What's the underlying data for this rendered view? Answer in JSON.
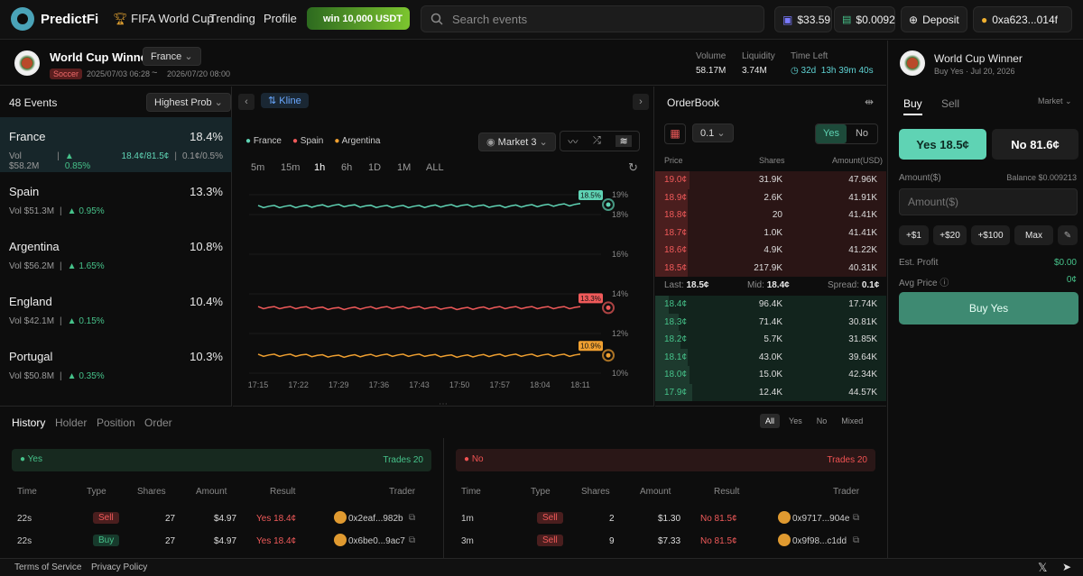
{
  "topbar": {
    "brand": "PredictFi",
    "nav": [
      "FIFA World Cup",
      "Trending",
      "Profile"
    ],
    "promo": "win 10,000 USDT",
    "search_placeholder": "Search events",
    "balance1": "$33.59",
    "balance2": "$0.0092",
    "deposit": "Deposit",
    "wallet": "0xa623...014f"
  },
  "market": {
    "title": "World Cup Winner",
    "selected": "France",
    "category": "Soccer",
    "start": "2025/07/03 06:28",
    "sep": "~",
    "end": "2026/07/20 08:00",
    "volume_label": "Volume",
    "volume": "58.17M",
    "liquidity_label": "Liquidity",
    "liquidity": "3.74M",
    "time_left_label": "Time Left",
    "time_left_days": "32d",
    "time_left_time": "13h 39m 40s"
  },
  "events": {
    "count": "48 Events",
    "sort": "Highest Prob",
    "items": [
      {
        "name": "France",
        "pct": "18.4%",
        "vol": "Vol $58.2M",
        "chg": "0.85%",
        "prices": "18.4¢/81.5¢",
        "spread": "0.1¢/0.5%"
      },
      {
        "name": "Spain",
        "pct": "13.3%",
        "vol": "Vol $51.3M",
        "chg": "0.95%"
      },
      {
        "name": "Argentina",
        "pct": "10.8%",
        "vol": "Vol $56.2M",
        "chg": "1.65%"
      },
      {
        "name": "England",
        "pct": "10.4%",
        "vol": "Vol $42.1M",
        "chg": "0.15%"
      },
      {
        "name": "Portugal",
        "pct": "10.3%",
        "vol": "Vol $50.8M",
        "chg": "0.35%"
      }
    ]
  },
  "chart": {
    "mode": "Kline",
    "market_select": "Market 3",
    "timeframes": [
      "5m",
      "15m",
      "1h",
      "6h",
      "1D",
      "1M",
      "ALL"
    ],
    "active_timeframe": "1h",
    "colors": {
      "France": "#5fd3b4",
      "Spain": "#f05a5a",
      "Argentina": "#f0a030"
    }
  },
  "chart_data": {
    "type": "line",
    "x": [
      "17:15",
      "17:22",
      "17:29",
      "17:36",
      "17:43",
      "17:50",
      "17:57",
      "18:04",
      "18:11"
    ],
    "y_ticks": [
      "19%",
      "18%",
      "16%",
      "14%",
      "12%",
      "10%"
    ],
    "ylim": [
      10,
      19
    ],
    "series": [
      {
        "name": "France",
        "values": [
          18.4,
          18.4,
          18.45,
          18.4,
          18.4,
          18.45,
          18.4,
          18.45,
          18.5
        ],
        "last_label": "18.5%"
      },
      {
        "name": "Spain",
        "values": [
          13.3,
          13.3,
          13.25,
          13.3,
          13.3,
          13.25,
          13.3,
          13.3,
          13.3
        ],
        "last_label": "13.3%"
      },
      {
        "name": "Argentina",
        "values": [
          10.9,
          10.9,
          10.85,
          10.9,
          10.9,
          10.85,
          10.9,
          10.9,
          10.9
        ],
        "last_label": "10.9%"
      }
    ]
  },
  "orderbook": {
    "title": "OrderBook",
    "tick": "0.1",
    "yes": "Yes",
    "no": "No",
    "headers": [
      "Price",
      "Shares",
      "Amount(USD)"
    ],
    "asks": [
      {
        "price": "19.0¢",
        "shares": "31.9K",
        "amount": "47.96K",
        "depth": 0.15
      },
      {
        "price": "18.9¢",
        "shares": "2.6K",
        "amount": "41.91K",
        "depth": 0.14
      },
      {
        "price": "18.8¢",
        "shares": "20",
        "amount": "41.41K",
        "depth": 0.14
      },
      {
        "price": "18.7¢",
        "shares": "1.0K",
        "amount": "41.41K",
        "depth": 0.14
      },
      {
        "price": "18.6¢",
        "shares": "4.9K",
        "amount": "41.22K",
        "depth": 0.14
      },
      {
        "price": "18.5¢",
        "shares": "217.9K",
        "amount": "40.31K",
        "depth": 0.14
      }
    ],
    "last_label": "Last:",
    "last": "18.5¢",
    "mid_label": "Mid:",
    "mid": "18.4¢",
    "spread_label": "Spread:",
    "spread": "0.1¢",
    "bids": [
      {
        "price": "18.4¢",
        "shares": "96.4K",
        "amount": "17.74K",
        "depth": 0.06
      },
      {
        "price": "18.3¢",
        "shares": "71.4K",
        "amount": "30.81K",
        "depth": 0.1
      },
      {
        "price": "18.2¢",
        "shares": "5.7K",
        "amount": "31.85K",
        "depth": 0.11
      },
      {
        "price": "18.1¢",
        "shares": "43.0K",
        "amount": "39.64K",
        "depth": 0.14
      },
      {
        "price": "18.0¢",
        "shares": "15.0K",
        "amount": "42.34K",
        "depth": 0.15
      },
      {
        "price": "17.9¢",
        "shares": "12.4K",
        "amount": "44.57K",
        "depth": 0.16
      }
    ]
  },
  "trade": {
    "title": "World Cup Winner",
    "subtitle": "Buy Yes · Jul 20, 2026",
    "buy_tab": "Buy",
    "sell_tab": "Sell",
    "order_type": "Market",
    "yes_btn": "Yes 18.5¢",
    "no_btn": "No 81.6¢",
    "amount_label": "Amount($)",
    "balance": "Balance $0.009213",
    "amount_placeholder": "Amount($)",
    "quick": [
      "+$1",
      "+$20",
      "+$100",
      "Max"
    ],
    "est_profit_label": "Est. Profit",
    "est_profit": "$0.00",
    "avg_price_label": "Avg Price",
    "avg_price": "0¢",
    "submit": "Buy Yes"
  },
  "history": {
    "tabs": [
      "History",
      "Holder",
      "Position",
      "Order"
    ],
    "filters": [
      "All",
      "Yes",
      "No",
      "Mixed"
    ],
    "yes_panel": {
      "label": "Yes",
      "trades": "Trades 20"
    },
    "no_panel": {
      "label": "No",
      "trades": "Trades 20"
    },
    "columns": [
      "Time",
      "Type",
      "Shares",
      "Amount",
      "Result",
      "Trader"
    ],
    "yes_rows": [
      {
        "time": "22s",
        "type": "Sell",
        "shares": "27",
        "amount": "$4.97",
        "result": "Yes 18.4¢",
        "trader": "0x2eaf...982b"
      },
      {
        "time": "22s",
        "type": "Buy",
        "shares": "27",
        "amount": "$4.97",
        "result": "Yes 18.4¢",
        "trader": "0x6be0...9ac7"
      }
    ],
    "no_rows": [
      {
        "time": "1m",
        "type": "Sell",
        "shares": "2",
        "amount": "$1.30",
        "result": "No 81.5¢",
        "trader": "0x9717...904e"
      },
      {
        "time": "3m",
        "type": "Sell",
        "shares": "9",
        "amount": "$7.33",
        "result": "No 81.5¢",
        "trader": "0x9f98...c1dd"
      }
    ]
  },
  "footer": {
    "terms": "Terms of Service",
    "privacy": "Privacy Policy"
  }
}
